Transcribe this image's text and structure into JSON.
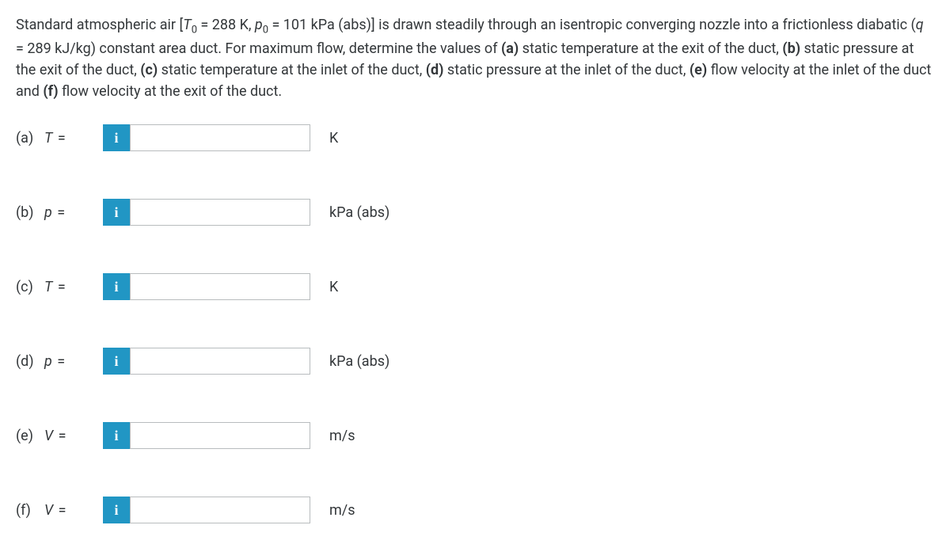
{
  "question": {
    "pre": "Standard atmospheric air [",
    "T0var": "T",
    "T0sub": "0",
    "T0eq": " = 288 K, ",
    "p0var": "p",
    "p0sub": "0",
    "p0eq": " = 101 kPa (abs)] is drawn steadily through an isentropic converging nozzle into a frictionless diabatic (",
    "qvar": "q",
    "qeq": " = 289 kJ/kg) constant area duct. For maximum flow, determine the values of ",
    "a_b": "(a)",
    "a_t": " static temperature at the exit of the duct, ",
    "b_b": "(b)",
    "b_t": " static pressure at the exit of the duct, ",
    "c_b": "(c)",
    "c_t": " static temperature at the inlet of the duct, ",
    "d_b": "(d)",
    "d_t": " static pressure at the inlet of the duct, ",
    "e_b": "(e)",
    "e_t": " flow velocity at the inlet of the duct and ",
    "f_b": "(f)",
    "f_t": " flow velocity at the exit of the duct."
  },
  "info_icon": "i",
  "rows": [
    {
      "part": "(a)",
      "var": "T",
      "eq": "=",
      "unit": "K",
      "value": ""
    },
    {
      "part": "(b)",
      "var": "p",
      "eq": "=",
      "unit": "kPa (abs)",
      "value": ""
    },
    {
      "part": "(c)",
      "var": "T",
      "eq": "=",
      "unit": "K",
      "value": ""
    },
    {
      "part": "(d)",
      "var": "p",
      "eq": "=",
      "unit": "kPa (abs)",
      "value": ""
    },
    {
      "part": "(e)",
      "var": "V",
      "eq": "=",
      "unit": "m/s",
      "value": ""
    },
    {
      "part": "(f)",
      "var": "V",
      "eq": "=",
      "unit": "m/s",
      "value": ""
    }
  ]
}
